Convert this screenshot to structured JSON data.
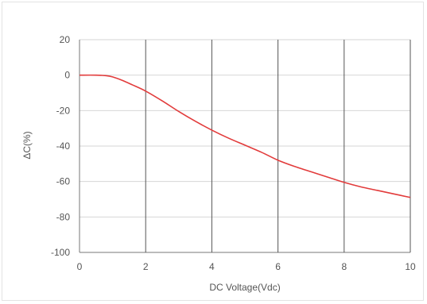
{
  "chart_data": {
    "type": "line",
    "title": "",
    "xlabel": "DC Voltage(Vdc)",
    "ylabel": "ΔC(%)",
    "xlim": [
      0,
      10
    ],
    "ylim": [
      -100,
      20
    ],
    "x_ticks": [
      0,
      2,
      4,
      6,
      8,
      10
    ],
    "y_ticks": [
      20,
      0,
      -20,
      -40,
      -60,
      -80,
      -100
    ],
    "x_tick_labels": [
      "0",
      "2",
      "4",
      "6",
      "8",
      "10"
    ],
    "y_tick_labels": [
      "20",
      "0",
      "-20",
      "-40",
      "-60",
      "-80",
      "-100"
    ],
    "grid": true,
    "legend": "none",
    "line_color": "#e23b3b",
    "grid_color": "#d6d6d6",
    "vgrid_color": "#555555",
    "series": [
      {
        "x": [
          0,
          0.5,
          0.8,
          1.0,
          1.3,
          1.6,
          2.0,
          2.5,
          3.0,
          3.5,
          4.0,
          4.5,
          5.0,
          5.5,
          6.0,
          6.5,
          7.0,
          7.5,
          8.0,
          8.5,
          9.0,
          9.5,
          10.0
        ],
        "values": [
          0,
          0,
          -0.3,
          -1,
          -3,
          -5.5,
          -9,
          -14.5,
          -20.5,
          -26,
          -31,
          -35.5,
          -39.5,
          -43.5,
          -48,
          -51.5,
          -54.5,
          -57.5,
          -60.5,
          -63,
          -65,
          -67,
          -69
        ]
      }
    ]
  }
}
